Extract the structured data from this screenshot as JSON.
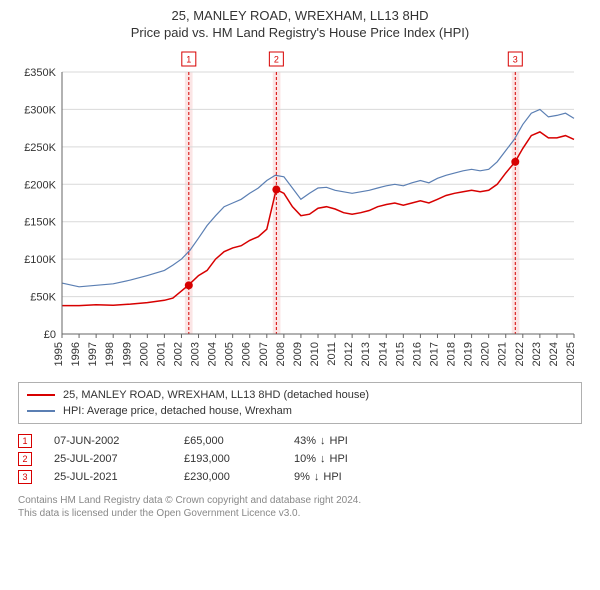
{
  "titles": {
    "line1": "25, MANLEY ROAD, WREXHAM, LL13 8HD",
    "line2": "Price paid vs. HM Land Registry's House Price Index (HPI)"
  },
  "chart": {
    "type": "line",
    "background_color": "#ffffff",
    "grid_color": "#d9d9d9",
    "axis_color": "#666666",
    "label_fontsize": 11,
    "label_color": "#333333",
    "xlim": [
      1995,
      2025
    ],
    "ylim": [
      0,
      350000
    ],
    "ytick_step": 50000,
    "ytick_labels": [
      "£0",
      "£50K",
      "£100K",
      "£150K",
      "£200K",
      "£250K",
      "£300K",
      "£350K"
    ],
    "xtick_step": 1,
    "xtick_labels": [
      "1995",
      "1996",
      "1997",
      "1998",
      "1999",
      "2000",
      "2001",
      "2002",
      "2003",
      "2004",
      "2005",
      "2006",
      "2007",
      "2008",
      "2009",
      "2010",
      "2011",
      "2012",
      "2013",
      "2014",
      "2015",
      "2016",
      "2017",
      "2018",
      "2019",
      "2020",
      "2021",
      "2022",
      "2023",
      "2024",
      "2025"
    ],
    "series": [
      {
        "name": "25, MANLEY ROAD, WREXHAM, LL13 8HD (detached house)",
        "color": "#d70000",
        "width": 1.5,
        "data": [
          [
            1995,
            38000
          ],
          [
            1996,
            38000
          ],
          [
            1997,
            39000
          ],
          [
            1998,
            38500
          ],
          [
            1999,
            40000
          ],
          [
            2000,
            42000
          ],
          [
            2001,
            45000
          ],
          [
            2001.5,
            48000
          ],
          [
            2002.4,
            65000
          ],
          [
            2003,
            78000
          ],
          [
            2003.5,
            85000
          ],
          [
            2004,
            100000
          ],
          [
            2004.5,
            110000
          ],
          [
            2005,
            115000
          ],
          [
            2005.5,
            118000
          ],
          [
            2006,
            125000
          ],
          [
            2006.5,
            130000
          ],
          [
            2007,
            140000
          ],
          [
            2007.55,
            193000
          ],
          [
            2008,
            188000
          ],
          [
            2008.5,
            170000
          ],
          [
            2009,
            158000
          ],
          [
            2009.5,
            160000
          ],
          [
            2010,
            168000
          ],
          [
            2010.5,
            170000
          ],
          [
            2011,
            167000
          ],
          [
            2011.5,
            162000
          ],
          [
            2012,
            160000
          ],
          [
            2012.5,
            162000
          ],
          [
            2013,
            165000
          ],
          [
            2013.5,
            170000
          ],
          [
            2014,
            173000
          ],
          [
            2014.5,
            175000
          ],
          [
            2015,
            172000
          ],
          [
            2015.5,
            175000
          ],
          [
            2016,
            178000
          ],
          [
            2016.5,
            175000
          ],
          [
            2017,
            180000
          ],
          [
            2017.5,
            185000
          ],
          [
            2018,
            188000
          ],
          [
            2018.5,
            190000
          ],
          [
            2019,
            192000
          ],
          [
            2019.5,
            190000
          ],
          [
            2020,
            192000
          ],
          [
            2020.5,
            200000
          ],
          [
            2021,
            215000
          ],
          [
            2021.55,
            230000
          ],
          [
            2022,
            248000
          ],
          [
            2022.5,
            265000
          ],
          [
            2023,
            270000
          ],
          [
            2023.5,
            262000
          ],
          [
            2024,
            262000
          ],
          [
            2024.5,
            265000
          ],
          [
            2025,
            260000
          ]
        ]
      },
      {
        "name": "HPI: Average price, detached house, Wrexham",
        "color": "#5b7fb3",
        "width": 1.2,
        "data": [
          [
            1995,
            68000
          ],
          [
            1996,
            63000
          ],
          [
            1997,
            65000
          ],
          [
            1998,
            67000
          ],
          [
            1999,
            72000
          ],
          [
            2000,
            78000
          ],
          [
            2001,
            85000
          ],
          [
            2001.5,
            92000
          ],
          [
            2002,
            100000
          ],
          [
            2002.5,
            112000
          ],
          [
            2003,
            128000
          ],
          [
            2003.5,
            145000
          ],
          [
            2004,
            158000
          ],
          [
            2004.5,
            170000
          ],
          [
            2005,
            175000
          ],
          [
            2005.5,
            180000
          ],
          [
            2006,
            188000
          ],
          [
            2006.5,
            195000
          ],
          [
            2007,
            205000
          ],
          [
            2007.5,
            212000
          ],
          [
            2008,
            210000
          ],
          [
            2008.5,
            195000
          ],
          [
            2009,
            180000
          ],
          [
            2009.5,
            188000
          ],
          [
            2010,
            195000
          ],
          [
            2010.5,
            196000
          ],
          [
            2011,
            192000
          ],
          [
            2011.5,
            190000
          ],
          [
            2012,
            188000
          ],
          [
            2012.5,
            190000
          ],
          [
            2013,
            192000
          ],
          [
            2013.5,
            195000
          ],
          [
            2014,
            198000
          ],
          [
            2014.5,
            200000
          ],
          [
            2015,
            198000
          ],
          [
            2015.5,
            202000
          ],
          [
            2016,
            205000
          ],
          [
            2016.5,
            202000
          ],
          [
            2017,
            208000
          ],
          [
            2017.5,
            212000
          ],
          [
            2018,
            215000
          ],
          [
            2018.5,
            218000
          ],
          [
            2019,
            220000
          ],
          [
            2019.5,
            218000
          ],
          [
            2020,
            220000
          ],
          [
            2020.5,
            230000
          ],
          [
            2021,
            245000
          ],
          [
            2021.5,
            260000
          ],
          [
            2022,
            280000
          ],
          [
            2022.5,
            295000
          ],
          [
            2023,
            300000
          ],
          [
            2023.5,
            290000
          ],
          [
            2024,
            292000
          ],
          [
            2024.5,
            295000
          ],
          [
            2025,
            288000
          ]
        ]
      }
    ],
    "event_markers": [
      {
        "label": "1",
        "x": 2002.43,
        "y": 65000,
        "band": [
          2002.2,
          2002.65
        ],
        "color": "#d70000",
        "band_color": "#fbe5e5"
      },
      {
        "label": "2",
        "x": 2007.56,
        "y": 193000,
        "band": [
          2007.35,
          2007.8
        ],
        "color": "#d70000",
        "band_color": "#fbe5e5"
      },
      {
        "label": "3",
        "x": 2021.56,
        "y": 230000,
        "band": [
          2021.35,
          2021.8
        ],
        "color": "#d70000",
        "band_color": "#fbe5e5"
      }
    ],
    "marker_point_color": "#d70000",
    "marker_point_radius": 4,
    "marker_box_fill": "#ffffff",
    "marker_box_border": "#d70000",
    "marker_box_fontsize": 9
  },
  "legend": {
    "border_color": "#b0b0b0",
    "items": [
      {
        "color": "#d70000",
        "label": "25, MANLEY ROAD, WREXHAM, LL13 8HD (detached house)"
      },
      {
        "color": "#5b7fb3",
        "label": "HPI: Average price, detached house, Wrexham"
      }
    ]
  },
  "events_table": {
    "rows": [
      {
        "marker": "1",
        "date": "07-JUN-2002",
        "price": "£65,000",
        "diff_pct": "43%",
        "diff_arrow": "↓",
        "diff_suffix": "HPI"
      },
      {
        "marker": "2",
        "date": "25-JUL-2007",
        "price": "£193,000",
        "diff_pct": "10%",
        "diff_arrow": "↓",
        "diff_suffix": "HPI"
      },
      {
        "marker": "3",
        "date": "25-JUL-2021",
        "price": "£230,000",
        "diff_pct": "9%",
        "diff_arrow": "↓",
        "diff_suffix": "HPI"
      }
    ],
    "marker_border_color": "#d70000",
    "marker_text_color": "#d70000"
  },
  "footer": {
    "line1": "Contains HM Land Registry data © Crown copyright and database right 2024.",
    "line2": "This data is licensed under the Open Government Licence v3.0.",
    "color": "#888888"
  }
}
